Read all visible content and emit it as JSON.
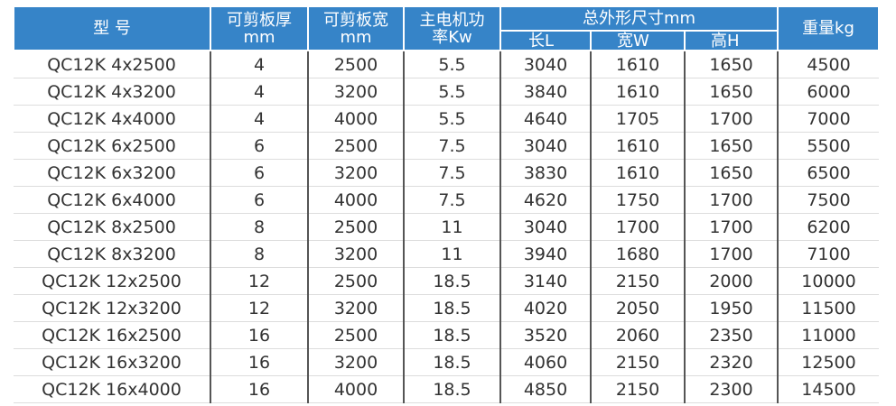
{
  "header": {
    "model": "型 号",
    "thickness": [
      "可剪板厚",
      "mm"
    ],
    "width": [
      "可剪板宽",
      "mm"
    ],
    "power": [
      "主电机功",
      "率Kw"
    ],
    "dimensions": {
      "title": "总外形尺寸mm",
      "length": "长L",
      "breadth": "宽W",
      "height": "高H"
    },
    "weight": "重量kg"
  },
  "table": {
    "rows": [
      [
        "QC12K 4x2500",
        4,
        2500,
        5.5,
        3040,
        1610,
        1650,
        4500
      ],
      [
        "QC12K 4x3200",
        4,
        3200,
        5.5,
        3840,
        1610,
        1650,
        6000
      ],
      [
        "QC12K 4x4000",
        4,
        4000,
        5.5,
        4640,
        1705,
        1700,
        7000
      ],
      [
        "QC12K 6x2500",
        6,
        2500,
        7.5,
        3040,
        1610,
        1650,
        5500
      ],
      [
        "QC12K 6x3200",
        6,
        3200,
        7.5,
        3830,
        1610,
        1650,
        6500
      ],
      [
        "QC12K 6x4000",
        6,
        4000,
        7.5,
        4620,
        1750,
        1700,
        7500
      ],
      [
        "QC12K 8x2500",
        8,
        2500,
        11,
        3040,
        1700,
        1700,
        6200
      ],
      [
        "QC12K 8x3200",
        8,
        3200,
        11,
        3940,
        1680,
        1700,
        7100
      ],
      [
        "QC12K 12x2500",
        12,
        2500,
        18.5,
        3140,
        2150,
        2000,
        10000
      ],
      [
        "QC12K 12x3200",
        12,
        3200,
        18.5,
        4020,
        2050,
        1950,
        11500
      ],
      [
        "QC12K 16x2500",
        16,
        2500,
        18.5,
        3520,
        2060,
        2350,
        11000
      ],
      [
        "QC12K 16x3200",
        16,
        3200,
        18.5,
        4060,
        2150,
        2320,
        12500
      ],
      [
        "QC12K 16x4000",
        16,
        4000,
        18.5,
        4850,
        2150,
        2300,
        14500
      ]
    ]
  }
}
